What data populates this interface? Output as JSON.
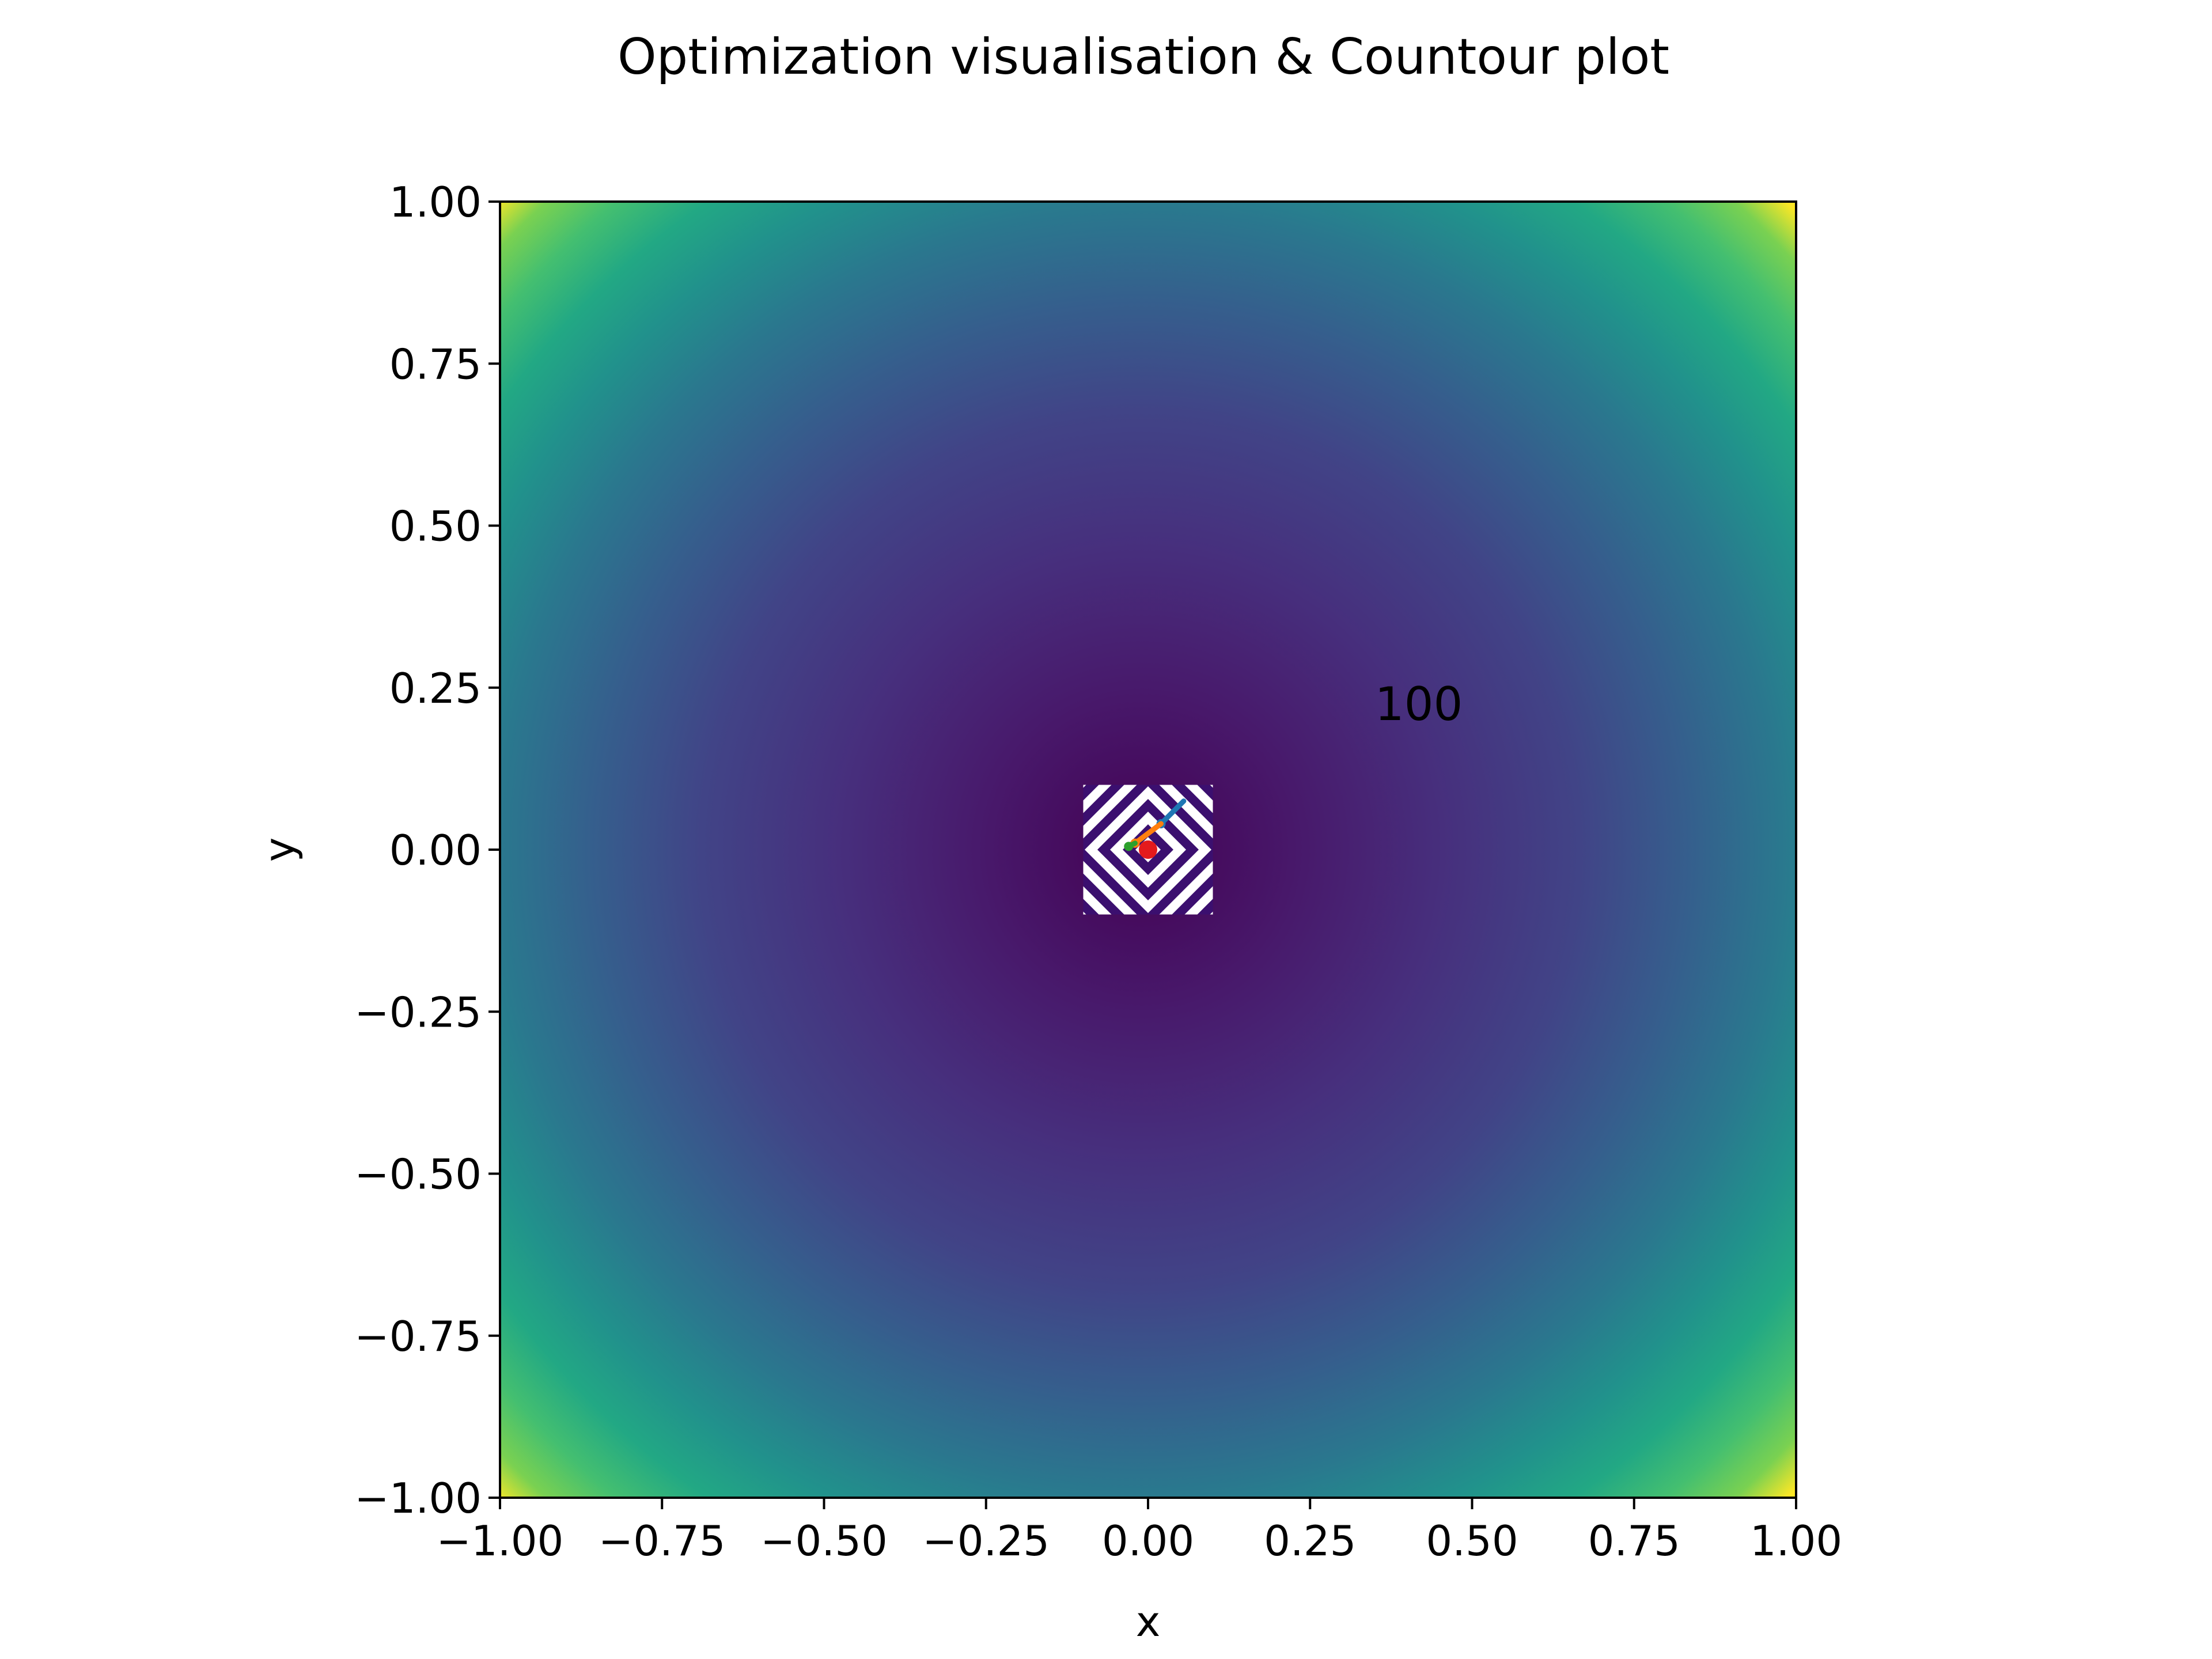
{
  "chart_data": {
    "type": "heatmap",
    "title": "Optimization visualisation & Countour plot",
    "xlabel": "x",
    "ylabel": "y",
    "xlim": [
      -1.0,
      1.0
    ],
    "ylim": [
      -1.0,
      1.0
    ],
    "xticks": [
      "−1.00",
      "−0.75",
      "−0.50",
      "−0.25",
      "0.00",
      "0.25",
      "0.50",
      "0.75",
      "1.00"
    ],
    "yticks": [
      "1.00",
      "0.75",
      "0.50",
      "0.25",
      "0.00",
      "−0.25",
      "−0.50",
      "−0.75",
      "−1.00"
    ],
    "xtick_values": [
      -1.0,
      -0.75,
      -0.5,
      -0.25,
      0.0,
      0.25,
      0.5,
      0.75,
      1.0
    ],
    "ytick_values": [
      1.0,
      0.75,
      0.5,
      0.25,
      0.0,
      -0.25,
      -0.5,
      -0.75,
      -1.0
    ],
    "colormap": "viridis",
    "grid": false,
    "annotations": [
      {
        "text": "100",
        "x": 0.35,
        "y": 0.2
      }
    ],
    "contour_region": {
      "xlim": [
        -0.1,
        0.1
      ],
      "ylim": [
        -0.1,
        0.1
      ],
      "shape": "diamond"
    },
    "optimization_paths": [
      {
        "color": "#1f77b4",
        "x": [
          0.055,
          0.02
        ],
        "y": [
          0.075,
          0.04
        ]
      },
      {
        "color": "#ff7f0e",
        "x": [
          0.02,
          -0.02
        ],
        "y": [
          0.04,
          0.01
        ]
      },
      {
        "color": "#2ca02c",
        "x": [
          -0.02,
          -0.03
        ],
        "y": [
          0.01,
          0.005
        ]
      }
    ],
    "minimum_marker": {
      "color": "#e41a1c",
      "x": 0.0,
      "y": 0.0
    }
  }
}
